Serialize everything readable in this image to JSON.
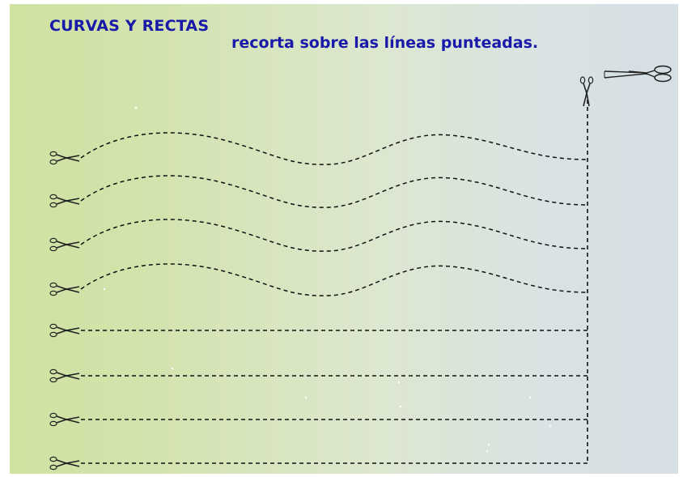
{
  "activity": {
    "title": "CURVAS Y RECTAS",
    "instruction": "recorta sobre las líneas punteadas.",
    "colors": {
      "text": "#1a1aa8",
      "line": "#111111",
      "background_left": "#cfe2a1",
      "background_right": "#d5dfe4"
    },
    "icons": {
      "row_tool": "scissors-icon",
      "big_tool": "large-scissors-icon"
    },
    "rows": [
      {
        "kind": "curve"
      },
      {
        "kind": "curve"
      },
      {
        "kind": "curve"
      },
      {
        "kind": "curve"
      },
      {
        "kind": "straight"
      },
      {
        "kind": "straight"
      },
      {
        "kind": "straight"
      },
      {
        "kind": "straight"
      }
    ]
  }
}
